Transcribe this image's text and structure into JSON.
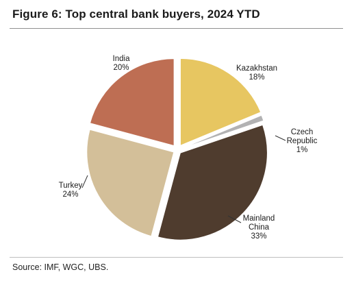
{
  "title": "Figure 6: Top central bank buyers, 2024 YTD",
  "source": "Source: IMF, WGC, UBS.",
  "chart_data": {
    "type": "pie",
    "title": "Figure 6: Top central bank buyers, 2024 YTD",
    "slices": [
      {
        "label_lines": [
          "Kazakhstan"
        ],
        "percent_text": "18%",
        "value": 18,
        "color": "#e7c661"
      },
      {
        "label_lines": [
          "Czech",
          "Republic"
        ],
        "percent_text": "1%",
        "value": 1,
        "color": "#b2b2b3"
      },
      {
        "label_lines": [
          "Mainland",
          "China"
        ],
        "percent_text": "33%",
        "value": 33,
        "color": "#4f3c2e"
      },
      {
        "label_lines": [
          "Turkey"
        ],
        "percent_text": "24%",
        "value": 24,
        "color": "#d3bf99"
      },
      {
        "label_lines": [
          "India"
        ],
        "percent_text": "20%",
        "value": 20,
        "color": "#be6e53"
      }
    ]
  }
}
